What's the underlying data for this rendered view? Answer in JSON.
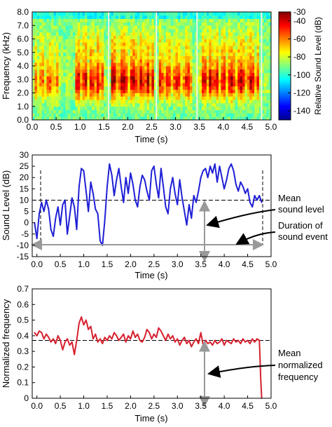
{
  "colors": {
    "series_level": "#1f1fd6",
    "series_freq": "#d6202e",
    "reference_line": "#000000",
    "annotation_arrow": "#999999",
    "axis": "#000000"
  },
  "chart_data": [
    {
      "type": "heatmap",
      "xlabel": "Time (s)",
      "ylabel": "Frequency (kHz)",
      "xlim": [
        0,
        5
      ],
      "ylim": [
        0,
        8
      ],
      "x_ticks": [
        "0.0",
        "0.5",
        "1.0",
        "1.5",
        "2.0",
        "2.5",
        "3.0",
        "3.5",
        "4.0",
        "4.5",
        "5.0"
      ],
      "y_ticks": [
        "0.0",
        "1.0",
        "2.0",
        "3.0",
        "4.0",
        "5.0",
        "6.0",
        "7.0",
        "8.0"
      ],
      "colorbar": {
        "label": "Relative Sound Level (dB)",
        "range": [
          -150,
          -30
        ],
        "ticks": [
          "-30",
          "-40",
          "-60",
          "-80",
          "-100",
          "-120",
          "-140"
        ],
        "tick_values": [
          -30,
          -40,
          -60,
          -80,
          -100,
          -120,
          -140
        ]
      },
      "vertical_lines_x": [
        0.0,
        1.6,
        2.6,
        3.45,
        4.8
      ]
    },
    {
      "type": "line",
      "xlabel": "Time (s)",
      "ylabel": "Sound Level (dB)",
      "xlim": [
        -0.1,
        5
      ],
      "ylim": [
        -15,
        30
      ],
      "x_ticks": [
        "0.0",
        "0.5",
        "1.0",
        "1.5",
        "2.0",
        "2.5",
        "3.0",
        "3.5",
        "4.0",
        "4.5",
        "5.0"
      ],
      "y_ticks": [
        "-15",
        "-10",
        "-5",
        "0",
        "5",
        "10",
        "15",
        "20",
        "25",
        "30"
      ],
      "mean_level": 10,
      "event_start": 0.0,
      "event_end": 4.8,
      "annotations": [
        "Mean",
        "sound level",
        "Duration of",
        "sound event"
      ],
      "series": [
        {
          "x": [
            -0.05,
            0.0,
            0.05,
            0.1,
            0.15,
            0.2,
            0.25,
            0.3,
            0.35,
            0.4,
            0.45,
            0.5,
            0.55,
            0.6,
            0.65,
            0.7,
            0.75,
            0.8,
            0.85,
            0.9,
            0.95,
            1.0,
            1.05,
            1.1,
            1.15,
            1.2,
            1.25,
            1.3,
            1.35,
            1.4,
            1.45,
            1.5,
            1.55,
            1.6,
            1.65,
            1.7,
            1.75,
            1.8,
            1.85,
            1.9,
            1.95,
            2.0,
            2.05,
            2.1,
            2.15,
            2.2,
            2.25,
            2.3,
            2.35,
            2.4,
            2.45,
            2.5,
            2.55,
            2.6,
            2.65,
            2.7,
            2.75,
            2.8,
            2.85,
            2.9,
            2.95,
            3.0,
            3.05,
            3.1,
            3.15,
            3.2,
            3.25,
            3.3,
            3.35,
            3.4,
            3.45,
            3.5,
            3.55,
            3.6,
            3.65,
            3.7,
            3.75,
            3.8,
            3.85,
            3.9,
            3.95,
            4.0,
            4.05,
            4.1,
            4.15,
            4.2,
            4.25,
            4.3,
            4.35,
            4.4,
            4.45,
            4.5,
            4.55,
            4.6,
            4.65,
            4.7,
            4.75,
            4.8
          ],
          "values": [
            0,
            -7,
            4,
            9,
            5,
            10,
            6,
            -3,
            -6,
            2,
            7,
            -1,
            8,
            10,
            -5,
            3,
            11,
            7,
            -3,
            16,
            24,
            23,
            14,
            5,
            18,
            13,
            6,
            4,
            -8,
            -10,
            1,
            16,
            26,
            21,
            12,
            19,
            24,
            16,
            9,
            20,
            13,
            22,
            17,
            10,
            7,
            16,
            21,
            19,
            14,
            10,
            23,
            25,
            17,
            11,
            24,
            16,
            7,
            4,
            15,
            20,
            13,
            8,
            19,
            11,
            5,
            -1,
            8,
            2,
            12,
            9,
            14,
            20,
            23,
            24,
            20,
            25,
            22,
            26,
            18,
            25,
            20,
            15,
            19,
            24,
            26,
            23,
            17,
            14,
            18,
            16,
            13,
            15,
            9,
            7,
            12,
            10,
            12,
            9
          ]
        }
      ]
    },
    {
      "type": "line",
      "xlabel": "Time (s)",
      "ylabel": "Normalized frequency",
      "xlim": [
        -0.1,
        5
      ],
      "ylim": [
        0,
        0.7
      ],
      "x_ticks": [
        "0.0",
        "0.5",
        "1.0",
        "1.5",
        "2.0",
        "2.5",
        "3.0",
        "3.5",
        "4.0",
        "4.5",
        "5.0"
      ],
      "y_ticks": [
        "0",
        "0.1",
        "0.2",
        "0.3",
        "0.4",
        "0.5",
        "0.6",
        "0.7"
      ],
      "mean_frequency": 0.37,
      "annotations": [
        "Mean",
        "normalized",
        "frequency"
      ],
      "series": [
        {
          "x": [
            -0.05,
            0.0,
            0.05,
            0.1,
            0.15,
            0.2,
            0.25,
            0.3,
            0.35,
            0.4,
            0.45,
            0.5,
            0.55,
            0.6,
            0.65,
            0.7,
            0.75,
            0.8,
            0.85,
            0.9,
            0.95,
            1.0,
            1.05,
            1.1,
            1.15,
            1.2,
            1.25,
            1.3,
            1.35,
            1.4,
            1.45,
            1.5,
            1.55,
            1.6,
            1.65,
            1.7,
            1.75,
            1.8,
            1.85,
            1.9,
            1.95,
            2.0,
            2.05,
            2.1,
            2.15,
            2.2,
            2.25,
            2.3,
            2.35,
            2.4,
            2.45,
            2.5,
            2.55,
            2.6,
            2.65,
            2.7,
            2.75,
            2.8,
            2.85,
            2.9,
            2.95,
            3.0,
            3.05,
            3.1,
            3.15,
            3.2,
            3.25,
            3.3,
            3.35,
            3.4,
            3.45,
            3.5,
            3.55,
            3.6,
            3.65,
            3.7,
            3.75,
            3.8,
            3.85,
            3.9,
            3.95,
            4.0,
            4.05,
            4.1,
            4.15,
            4.2,
            4.25,
            4.3,
            4.35,
            4.4,
            4.45,
            4.5,
            4.55,
            4.6,
            4.65,
            4.7,
            4.75,
            4.78,
            4.8
          ],
          "values": [
            0.42,
            0.4,
            0.43,
            0.42,
            0.38,
            0.41,
            0.39,
            0.36,
            0.38,
            0.35,
            0.4,
            0.37,
            0.31,
            0.36,
            0.38,
            0.34,
            0.36,
            0.28,
            0.37,
            0.48,
            0.52,
            0.47,
            0.5,
            0.44,
            0.46,
            0.38,
            0.41,
            0.36,
            0.38,
            0.35,
            0.39,
            0.37,
            0.4,
            0.38,
            0.42,
            0.4,
            0.37,
            0.39,
            0.41,
            0.36,
            0.4,
            0.38,
            0.43,
            0.39,
            0.41,
            0.37,
            0.36,
            0.39,
            0.44,
            0.42,
            0.38,
            0.41,
            0.39,
            0.45,
            0.43,
            0.4,
            0.37,
            0.41,
            0.38,
            0.4,
            0.36,
            0.38,
            0.34,
            0.37,
            0.39,
            0.35,
            0.37,
            0.33,
            0.36,
            0.38,
            0.35,
            0.42,
            0.34,
            0.37,
            0.35,
            0.36,
            0.34,
            0.37,
            0.35,
            0.36,
            0.38,
            0.34,
            0.37,
            0.36,
            0.35,
            0.38,
            0.36,
            0.37,
            0.35,
            0.38,
            0.36,
            0.37,
            0.35,
            0.38,
            0.36,
            0.38,
            0.37,
            0.12,
            0.0
          ]
        }
      ]
    }
  ]
}
